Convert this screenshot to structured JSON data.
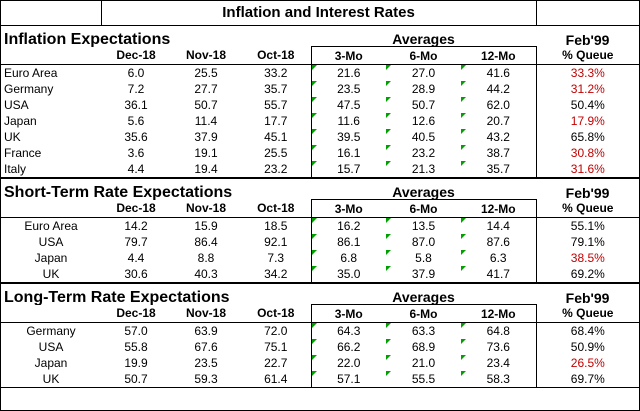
{
  "title": "Inflation and Interest Rates",
  "averages_label": "Averages",
  "feb_label": "Feb'99",
  "columns": [
    "Dec-18",
    "Nov-18",
    "Oct-18",
    "3-Mo",
    "6-Mo",
    "12-Mo",
    "% Queue"
  ],
  "sections": [
    {
      "title": "Inflation Expectations",
      "rows": [
        {
          "label": "Euro Area",
          "v": [
            "6.0",
            "25.5",
            "33.2",
            "21.6",
            "27.0",
            "41.6",
            "33.3%"
          ],
          "queue_red": true
        },
        {
          "label": "Germany",
          "v": [
            "7.2",
            "27.7",
            "35.7",
            "23.5",
            "28.9",
            "44.2",
            "31.2%"
          ],
          "queue_red": true
        },
        {
          "label": "USA",
          "v": [
            "36.1",
            "50.7",
            "55.7",
            "47.5",
            "50.7",
            "62.0",
            "50.4%"
          ],
          "queue_red": false
        },
        {
          "label": "Japan",
          "v": [
            "5.6",
            "11.4",
            "17.7",
            "11.6",
            "12.6",
            "20.7",
            "17.9%"
          ],
          "queue_red": true
        },
        {
          "label": "UK",
          "v": [
            "35.6",
            "37.9",
            "45.1",
            "39.5",
            "40.5",
            "43.2",
            "65.8%"
          ],
          "queue_red": false
        },
        {
          "label": "France",
          "v": [
            "3.6",
            "19.1",
            "25.5",
            "16.1",
            "23.2",
            "38.7",
            "30.8%"
          ],
          "queue_red": true
        },
        {
          "label": "Italy",
          "v": [
            "4.4",
            "19.4",
            "23.2",
            "15.7",
            "21.3",
            "35.7",
            "31.6%"
          ],
          "queue_red": true
        }
      ]
    },
    {
      "title": "Short-Term Rate Expectations",
      "rows": [
        {
          "label": "Euro Area",
          "v": [
            "14.2",
            "15.9",
            "18.5",
            "16.2",
            "13.5",
            "14.4",
            "55.1%"
          ],
          "queue_red": false
        },
        {
          "label": "USA",
          "v": [
            "79.7",
            "86.4",
            "92.1",
            "86.1",
            "87.0",
            "87.6",
            "79.1%"
          ],
          "queue_red": false
        },
        {
          "label": "Japan",
          "v": [
            "4.4",
            "8.8",
            "7.3",
            "6.8",
            "5.8",
            "6.3",
            "38.5%"
          ],
          "queue_red": true
        },
        {
          "label": "UK",
          "v": [
            "30.6",
            "40.3",
            "34.2",
            "35.0",
            "37.9",
            "41.7",
            "69.2%"
          ],
          "queue_red": false
        }
      ]
    },
    {
      "title": "Long-Term Rate Expectations",
      "rows": [
        {
          "label": "Germany",
          "v": [
            "57.0",
            "63.9",
            "72.0",
            "64.3",
            "63.3",
            "64.8",
            "68.4%"
          ],
          "queue_red": false
        },
        {
          "label": "USA",
          "v": [
            "55.8",
            "67.6",
            "75.1",
            "66.2",
            "68.9",
            "73.6",
            "50.9%"
          ],
          "queue_red": false
        },
        {
          "label": "Japan",
          "v": [
            "19.9",
            "23.5",
            "22.7",
            "22.0",
            "21.0",
            "23.4",
            "26.5%"
          ],
          "queue_red": true
        },
        {
          "label": "UK",
          "v": [
            "50.7",
            "59.3",
            "61.4",
            "57.1",
            "55.5",
            "58.3",
            "69.7%"
          ],
          "queue_red": false
        }
      ]
    }
  ],
  "colors": {
    "negative_queue": "#c00000",
    "cell_marker": "#00a000"
  }
}
